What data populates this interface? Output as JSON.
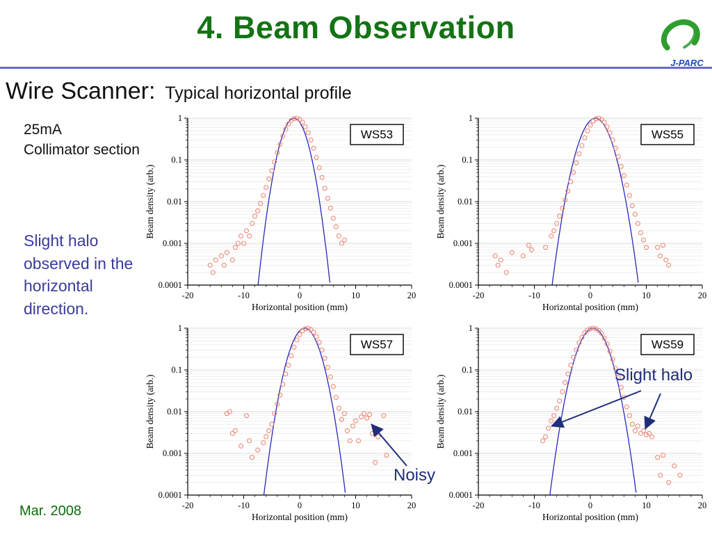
{
  "slide": {
    "title": "4. Beam Observation",
    "heading": "Wire Scanner:",
    "subheading": "Typical horizontal profile",
    "conditions": [
      "25mA",
      "Collimator section"
    ],
    "note": "Slight halo observed in the horizontal direction.",
    "date": "Mar. 2008",
    "logo_text": "J-PARC"
  },
  "annotations": [
    {
      "id": "noisy",
      "label": "Noisy"
    },
    {
      "id": "slight-halo",
      "label": "Slight halo"
    }
  ],
  "colors": {
    "title_green": "#147314",
    "date_green": "#0b6b0b",
    "divider_purple": "#6a6ace",
    "note_navy": "#3a3a9e",
    "annotation_navy": "#1f2d7a",
    "marker_red": "#ee8877",
    "fit_blue": "#2727bd",
    "logo_green": "#2f9e2f",
    "logo_blue": "#1b4bc4"
  },
  "chart_data": [
    {
      "type": "scatter",
      "label": "WS53",
      "xlabel": "Horizontal position (mm)",
      "ylabel": "Beam density (arb.)",
      "xlim": [
        -20,
        20
      ],
      "ylim": [
        0.0001,
        1
      ],
      "xticks": [
        -20,
        -10,
        0,
        10,
        20
      ],
      "ytick_labels": [
        "1",
        "0.1",
        "0.01",
        "0.001",
        "0.0001"
      ],
      "fit": {
        "type": "gaussian",
        "center": -1.0,
        "sigma": 1.5,
        "peak": 1.0
      },
      "points": [
        [
          -16,
          0.0003
        ],
        [
          -15.5,
          0.0002
        ],
        [
          -15,
          0.0004
        ],
        [
          -14,
          0.0005
        ],
        [
          -13.5,
          0.0003
        ],
        [
          -13,
          0.0006
        ],
        [
          -12,
          0.0004
        ],
        [
          -11.5,
          0.0008
        ],
        [
          -11,
          0.001
        ],
        [
          -10.5,
          0.0015
        ],
        [
          -10,
          0.001
        ],
        [
          -9.5,
          0.002
        ],
        [
          -9,
          0.0015
        ],
        [
          -8.5,
          0.003
        ],
        [
          -8,
          0.0045
        ],
        [
          -7.5,
          0.006
        ],
        [
          -7,
          0.009
        ],
        [
          -6.5,
          0.014
        ],
        [
          -6,
          0.022
        ],
        [
          -5.5,
          0.035
        ],
        [
          -5,
          0.055
        ],
        [
          -4.5,
          0.09
        ],
        [
          -4,
          0.15
        ],
        [
          -3.5,
          0.24
        ],
        [
          -3,
          0.37
        ],
        [
          -2.5,
          0.55
        ],
        [
          -2,
          0.73
        ],
        [
          -1.5,
          0.89
        ],
        [
          -1,
          0.98
        ],
        [
          -0.5,
          1.0
        ],
        [
          0,
          0.93
        ],
        [
          0.5,
          0.8
        ],
        [
          1,
          0.62
        ],
        [
          1.5,
          0.45
        ],
        [
          2,
          0.3
        ],
        [
          2.5,
          0.19
        ],
        [
          3,
          0.115
        ],
        [
          3.5,
          0.065
        ],
        [
          4,
          0.038
        ],
        [
          4.5,
          0.021
        ],
        [
          5,
          0.012
        ],
        [
          5.5,
          0.007
        ],
        [
          6,
          0.004
        ],
        [
          6.5,
          0.0025
        ],
        [
          7,
          0.0015
        ],
        [
          7.5,
          0.001
        ],
        [
          8,
          0.0012
        ]
      ]
    },
    {
      "type": "scatter",
      "label": "WS55",
      "xlabel": "Horizontal position (mm)",
      "ylabel": "Beam density (arb.)",
      "xlim": [
        -20,
        20
      ],
      "ylim": [
        0.0001,
        1
      ],
      "xticks": [
        -20,
        -10,
        0,
        10,
        20
      ],
      "ytick_labels": [
        "1",
        "0.1",
        "0.01",
        "0.001",
        "0.0001"
      ],
      "fit": {
        "type": "gaussian",
        "center": 0.9,
        "sigma": 1.8,
        "peak": 1.0
      },
      "points": [
        [
          -17,
          0.0005
        ],
        [
          -16.5,
          0.0003
        ],
        [
          -16,
          0.0004
        ],
        [
          -15,
          0.0002
        ],
        [
          -14,
          0.0006
        ],
        [
          -12,
          0.0005
        ],
        [
          -11,
          0.0009
        ],
        [
          -10.5,
          0.0007
        ],
        [
          -8,
          0.0008
        ],
        [
          -7,
          0.0015
        ],
        [
          -6.5,
          0.002
        ],
        [
          -6,
          0.003
        ],
        [
          -5.5,
          0.0045
        ],
        [
          -5,
          0.007
        ],
        [
          -4.5,
          0.011
        ],
        [
          -4,
          0.018
        ],
        [
          -3.5,
          0.03
        ],
        [
          -3,
          0.05
        ],
        [
          -2.5,
          0.085
        ],
        [
          -2,
          0.14
        ],
        [
          -1.5,
          0.22
        ],
        [
          -1,
          0.34
        ],
        [
          -0.5,
          0.5
        ],
        [
          0,
          0.68
        ],
        [
          0.5,
          0.85
        ],
        [
          1,
          0.96
        ],
        [
          1.5,
          1.0
        ],
        [
          2,
          0.93
        ],
        [
          2.5,
          0.8
        ],
        [
          3,
          0.62
        ],
        [
          3.5,
          0.45
        ],
        [
          4,
          0.3
        ],
        [
          4.5,
          0.19
        ],
        [
          5,
          0.12
        ],
        [
          5.5,
          0.07
        ],
        [
          6,
          0.042
        ],
        [
          6.5,
          0.025
        ],
        [
          7,
          0.014
        ],
        [
          7.5,
          0.008
        ],
        [
          8,
          0.005
        ],
        [
          8.5,
          0.003
        ],
        [
          9,
          0.0018
        ],
        [
          9.5,
          0.0012
        ],
        [
          10,
          0.0008
        ],
        [
          12,
          0.0008
        ],
        [
          12.5,
          0.0005
        ],
        [
          13,
          0.0009
        ],
        [
          13.5,
          0.0004
        ],
        [
          14,
          0.0003
        ]
      ]
    },
    {
      "type": "scatter",
      "label": "WS57",
      "xlabel": "Horizontal position (mm)",
      "ylabel": "Beam density (arb.)",
      "xlim": [
        -20,
        20
      ],
      "ylim": [
        0.0001,
        1
      ],
      "xticks": [
        -20,
        -10,
        0,
        10,
        20
      ],
      "ytick_labels": [
        "1",
        "0.1",
        "0.01",
        "0.001",
        "0.0001"
      ],
      "fit": {
        "type": "gaussian",
        "center": 0.9,
        "sigma": 1.7,
        "peak": 1.0
      },
      "points": [
        [
          -13,
          0.009
        ],
        [
          -12.5,
          0.01
        ],
        [
          -12,
          0.003
        ],
        [
          -11.5,
          0.0035
        ],
        [
          -10.5,
          0.0015
        ],
        [
          -9.5,
          0.008
        ],
        [
          -9,
          0.002
        ],
        [
          -8.5,
          0.0008
        ],
        [
          -7.5,
          0.0012
        ],
        [
          -6.5,
          0.0018
        ],
        [
          -6,
          0.0025
        ],
        [
          -5.5,
          0.0035
        ],
        [
          -5,
          0.005
        ],
        [
          -4.5,
          0.009
        ],
        [
          -4,
          0.015
        ],
        [
          -3.5,
          0.025
        ],
        [
          -3,
          0.045
        ],
        [
          -2.5,
          0.08
        ],
        [
          -2,
          0.13
        ],
        [
          -1.5,
          0.22
        ],
        [
          -1,
          0.35
        ],
        [
          -0.5,
          0.52
        ],
        [
          0,
          0.7
        ],
        [
          0.5,
          0.87
        ],
        [
          1,
          0.97
        ],
        [
          1.5,
          1.0
        ],
        [
          2,
          0.93
        ],
        [
          2.5,
          0.8
        ],
        [
          3,
          0.63
        ],
        [
          3.5,
          0.46
        ],
        [
          4,
          0.3
        ],
        [
          4.5,
          0.19
        ],
        [
          5,
          0.115
        ],
        [
          5.5,
          0.068
        ],
        [
          6,
          0.04
        ],
        [
          6.5,
          0.022
        ],
        [
          7,
          0.012
        ],
        [
          7.5,
          0.0065
        ],
        [
          8,
          0.009
        ],
        [
          8.5,
          0.0035
        ],
        [
          9,
          0.002
        ],
        [
          9.5,
          0.0045
        ],
        [
          10,
          0.006
        ],
        [
          10.5,
          0.002
        ],
        [
          11,
          0.0075
        ],
        [
          11.5,
          0.009
        ],
        [
          12,
          0.007
        ],
        [
          12.5,
          0.0085
        ],
        [
          13,
          0.003
        ],
        [
          13.5,
          0.0006
        ],
        [
          14,
          0.0025
        ],
        [
          15,
          0.008
        ],
        [
          15.5,
          0.0009
        ]
      ]
    },
    {
      "type": "scatter",
      "label": "WS59",
      "xlabel": "Horizontal position (mm)",
      "ylabel": "Beam density (arb.)",
      "xlim": [
        -20,
        20
      ],
      "ylim": [
        0.0001,
        1
      ],
      "xticks": [
        -20,
        -10,
        0,
        10,
        20
      ],
      "ytick_labels": [
        "1",
        "0.1",
        "0.01",
        "0.001",
        "0.0001"
      ],
      "fit": {
        "type": "gaussian",
        "center": 0.5,
        "sigma": 1.8,
        "peak": 1.0
      },
      "points": [
        [
          -8.5,
          0.002
        ],
        [
          -8,
          0.0025
        ],
        [
          -7.5,
          0.004
        ],
        [
          -7,
          0.006
        ],
        [
          -6.5,
          0.008
        ],
        [
          -6,
          0.012
        ],
        [
          -5.5,
          0.018
        ],
        [
          -5,
          0.03
        ],
        [
          -4.5,
          0.05
        ],
        [
          -4,
          0.08
        ],
        [
          -3.5,
          0.13
        ],
        [
          -3,
          0.2
        ],
        [
          -2.5,
          0.3
        ],
        [
          -2,
          0.45
        ],
        [
          -1.5,
          0.6
        ],
        [
          -1,
          0.78
        ],
        [
          -0.5,
          0.9
        ],
        [
          0,
          0.97
        ],
        [
          0.5,
          1.0
        ],
        [
          1,
          0.97
        ],
        [
          1.5,
          0.88
        ],
        [
          2,
          0.75
        ],
        [
          2.5,
          0.58
        ],
        [
          3,
          0.42
        ],
        [
          3.5,
          0.28
        ],
        [
          4,
          0.18
        ],
        [
          4.5,
          0.11
        ],
        [
          5,
          0.065
        ],
        [
          5.5,
          0.038
        ],
        [
          6,
          0.022
        ],
        [
          6.5,
          0.013
        ],
        [
          7,
          0.008
        ],
        [
          7.5,
          0.005
        ],
        [
          8,
          0.0035
        ],
        [
          8.5,
          0.0045
        ],
        [
          9,
          0.003
        ],
        [
          9.5,
          0.0035
        ],
        [
          10,
          0.0028
        ],
        [
          10.5,
          0.003
        ],
        [
          11,
          0.0025
        ],
        [
          12,
          0.0008
        ],
        [
          12.5,
          0.0003
        ],
        [
          13,
          0.0009
        ],
        [
          14,
          0.0002
        ],
        [
          15,
          0.0005
        ],
        [
          16,
          0.0003
        ]
      ]
    }
  ]
}
